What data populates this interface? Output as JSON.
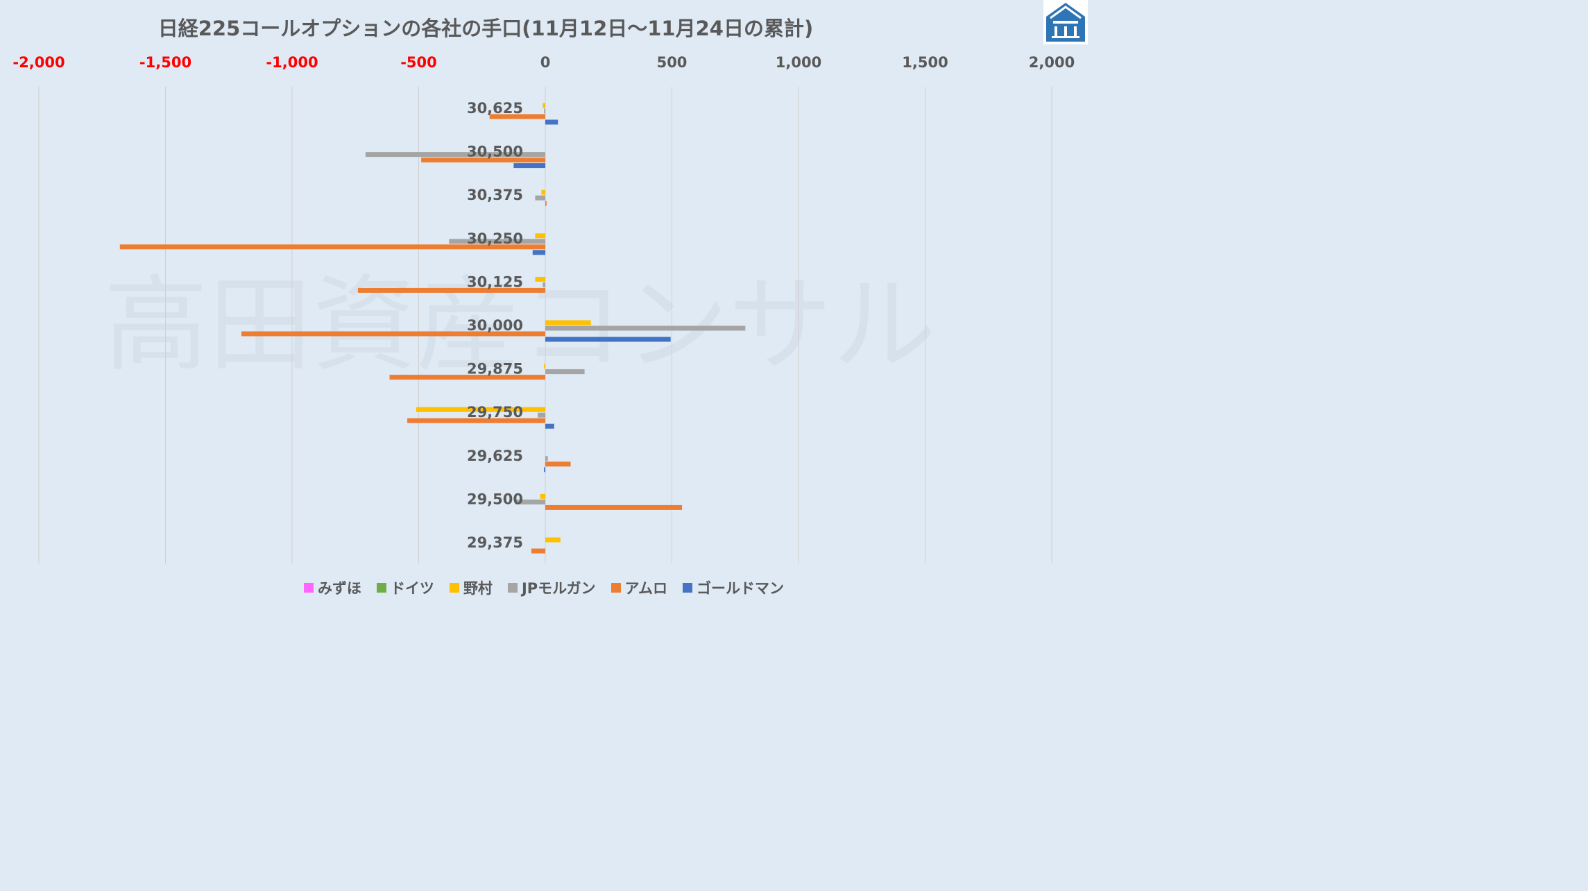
{
  "title": "日経225コールオプションの各社の手口(11月12日～11月24日の累計)",
  "watermark": "高田資産コンサル",
  "logo": {
    "name": "takada-logo",
    "color": "#2e75b6"
  },
  "chart_data": {
    "type": "bar",
    "orientation": "horizontal",
    "xlim": [
      -2000,
      2000
    ],
    "xticks": [
      {
        "value": -2000,
        "label": "-2,000"
      },
      {
        "value": -1500,
        "label": "-1,500"
      },
      {
        "value": -1000,
        "label": "-1,000"
      },
      {
        "value": -500,
        "label": "-500"
      },
      {
        "value": 0,
        "label": "0"
      },
      {
        "value": 500,
        "label": "500"
      },
      {
        "value": 1000,
        "label": "1,000"
      },
      {
        "value": 1500,
        "label": "1,500"
      },
      {
        "value": 2000,
        "label": "2,000"
      }
    ],
    "negative_tick_color": "#ff0000",
    "positive_tick_color": "#595959",
    "grid": true,
    "legend_position": "bottom",
    "categories": [
      "30,625",
      "30,500",
      "30,375",
      "30,250",
      "30,125",
      "30,000",
      "29,875",
      "29,750",
      "29,625",
      "29,500",
      "29,375"
    ],
    "series": [
      {
        "name": "みずほ",
        "color": "#ff66ff",
        "values": [
          0,
          0,
          0,
          0,
          0,
          0,
          0,
          0,
          0,
          0,
          0
        ]
      },
      {
        "name": "ドイツ",
        "color": "#70ad47",
        "values": [
          0,
          0,
          0,
          0,
          0,
          0,
          0,
          0,
          0,
          0,
          0
        ]
      },
      {
        "name": "野村",
        "color": "#ffc000",
        "values": [
          -10,
          0,
          -15,
          -40,
          -40,
          180,
          -5,
          -510,
          0,
          -20,
          60
        ]
      },
      {
        "name": "JPモルガン",
        "color": "#a5a5a5",
        "values": [
          -5,
          -710,
          -40,
          -380,
          -10,
          790,
          155,
          -30,
          10,
          -120,
          0
        ]
      },
      {
        "name": "アムロ",
        "color": "#ed7d31",
        "values": [
          -220,
          -490,
          5,
          -1680,
          -740,
          -1200,
          -615,
          -545,
          100,
          540,
          -55
        ]
      },
      {
        "name": "ゴールドマン",
        "color": "#4472c4",
        "values": [
          50,
          -125,
          0,
          -50,
          0,
          495,
          0,
          35,
          -5,
          0,
          0
        ]
      }
    ]
  }
}
